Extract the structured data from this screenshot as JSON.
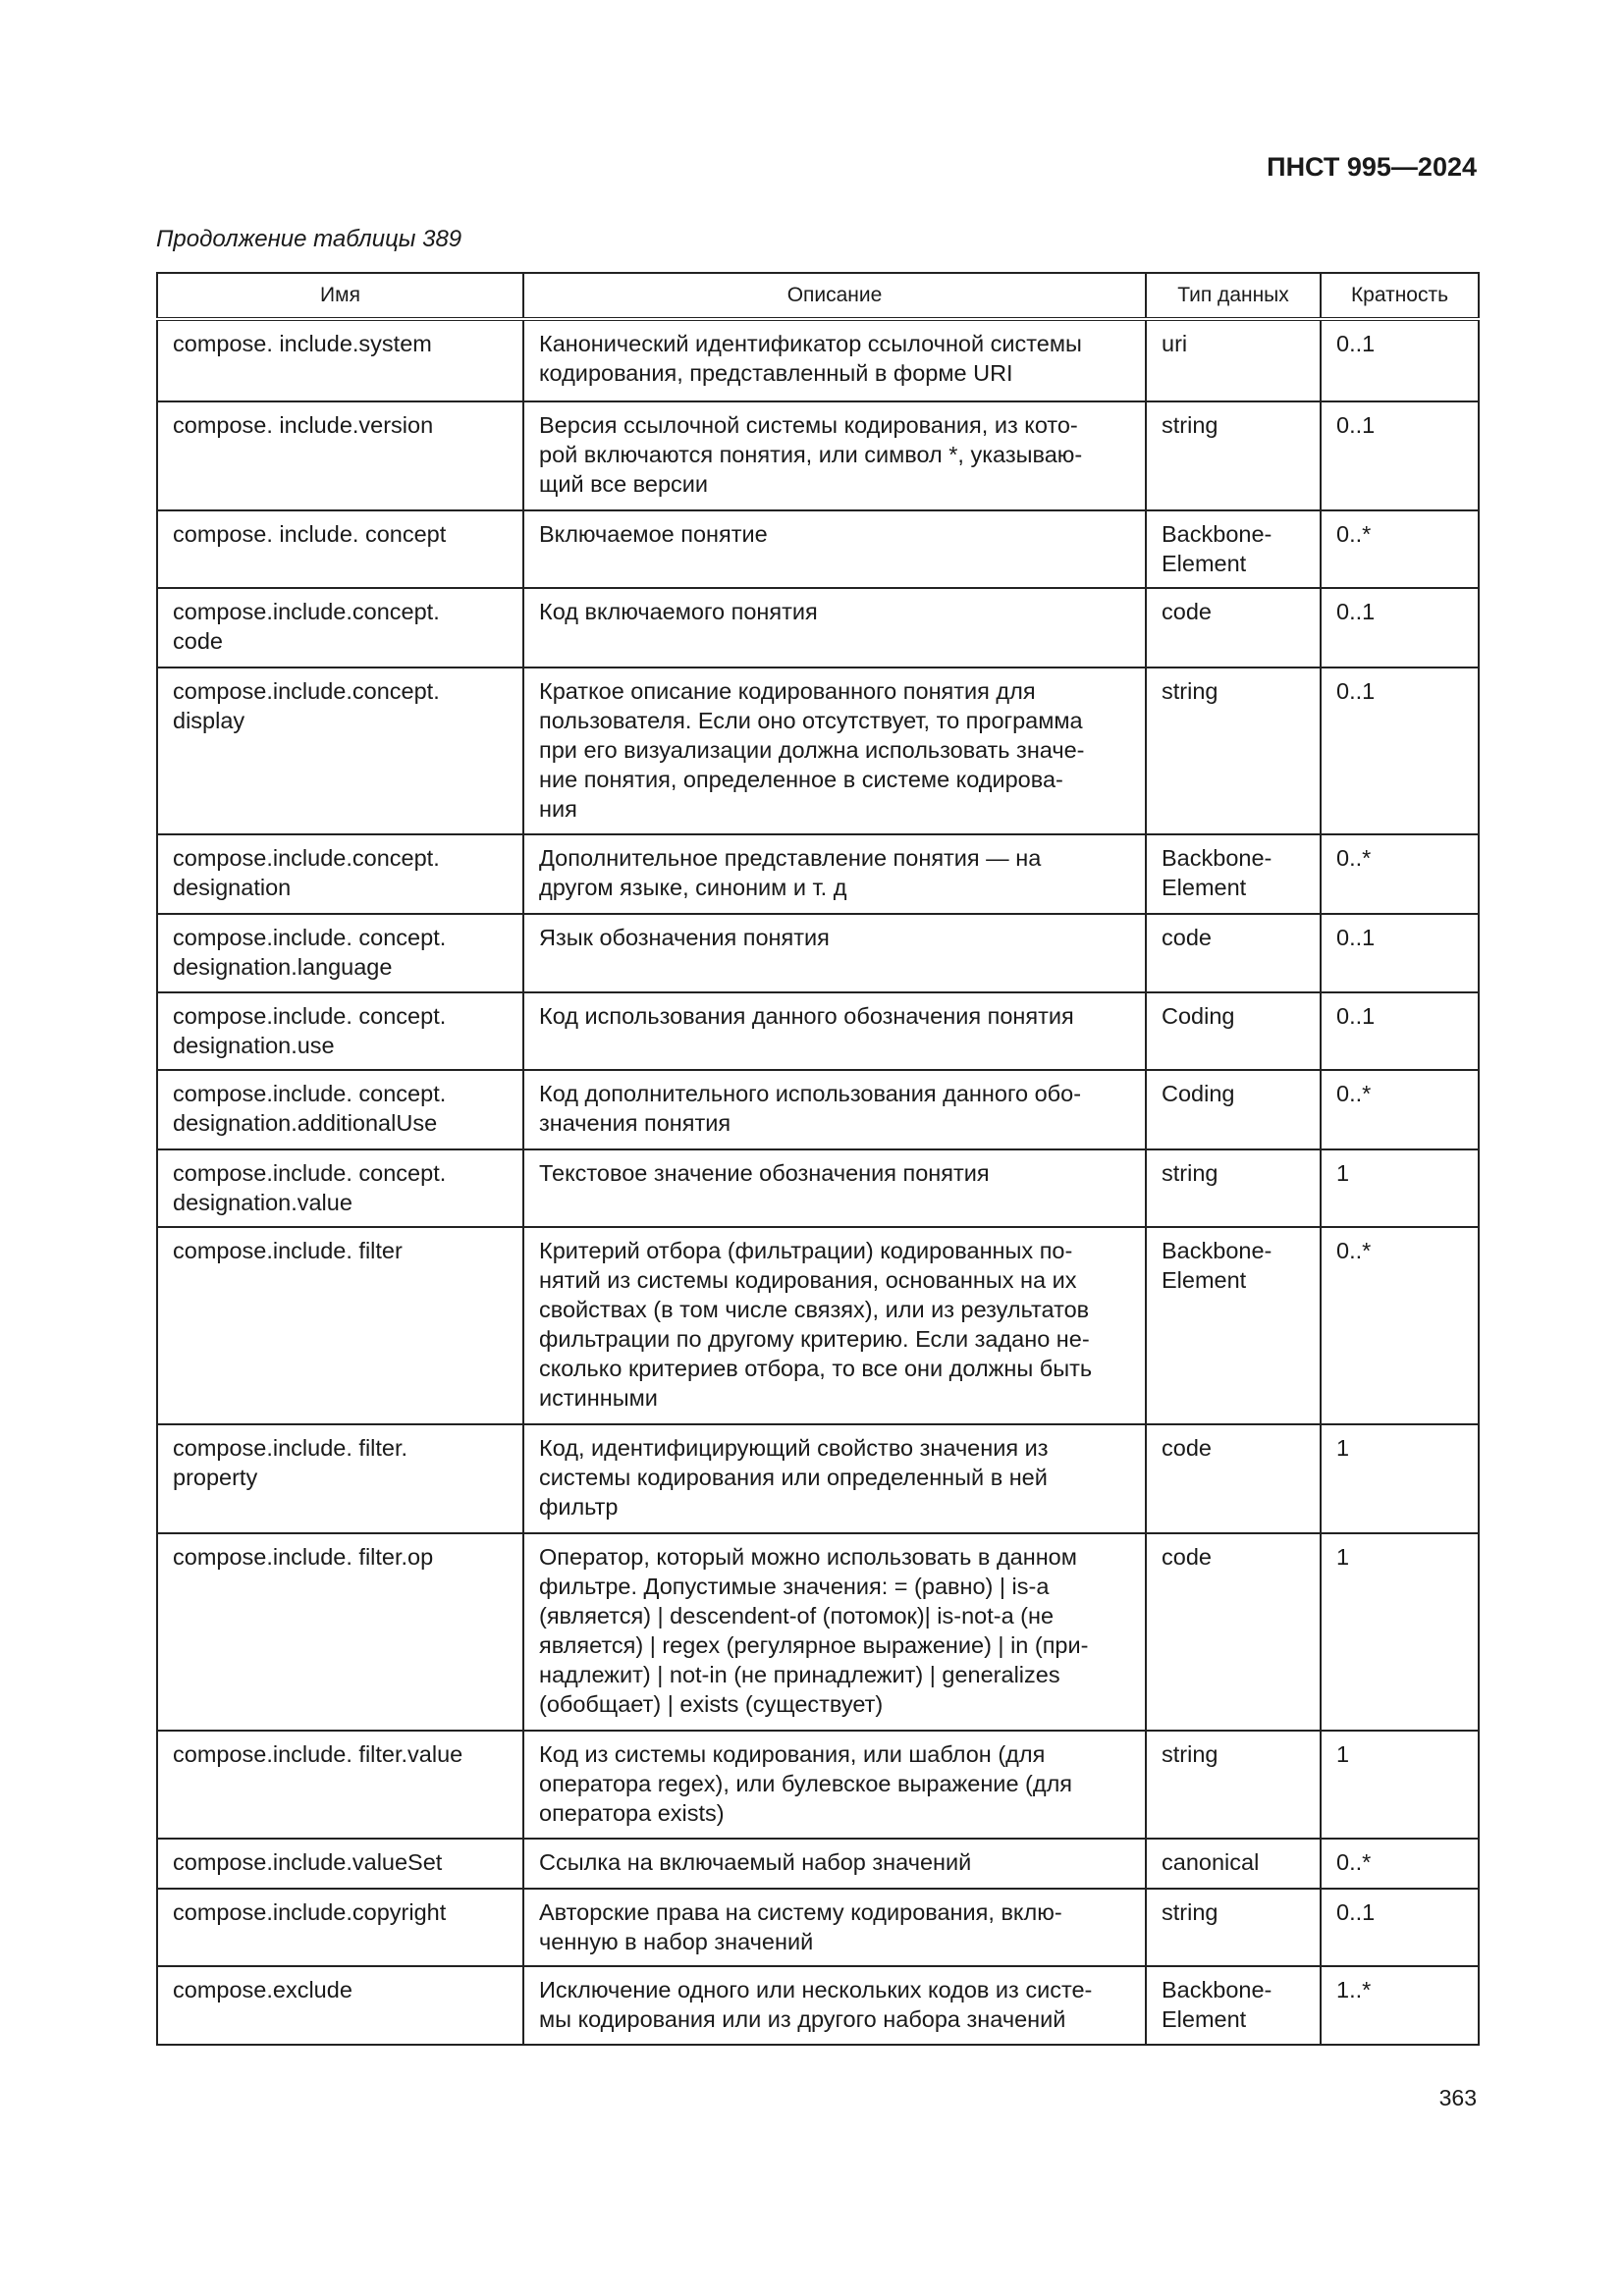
{
  "header": {
    "doc_id": "ПНСТ 995—2024",
    "caption": "Продолжение таблицы 389"
  },
  "table": {
    "columns": [
      "Имя",
      "Описание",
      "Тип данных",
      "Кратность"
    ],
    "rows": [
      {
        "name": " compose. include.system",
        "desc": "Канонический идентификатор ссылочной системы\nкодирования, представленный в форме URI",
        "type": "uri",
        "card": "0..1"
      },
      {
        "name": "compose. include.version",
        "desc": "Версия ссылочной системы кодирования, из кото-\nрой включаются понятия, или символ *, указываю-\nщий все версии",
        "type": "string",
        "card": "0..1"
      },
      {
        "name": "compose. include. concept",
        "desc": "Включаемое понятие",
        "type": "Backbone-\nElement",
        "card": "0..*"
      },
      {
        "name": "compose.include.concept.\ncode",
        "desc": "Код включаемого понятия",
        "type": "code",
        "card": "0..1"
      },
      {
        "name": "compose.include.concept.\ndisplay",
        "desc": "Краткое описание кодированного понятия для\nпользователя. Если оно отсутствует, то программа\nпри его визуализации должна использовать значе-\nние понятия, определенное в системе кодирова-\nния",
        "type": "string",
        "card": "0..1"
      },
      {
        "name": "compose.include.concept.\ndesignation",
        "desc": "Дополнительное представление понятия — на\nдругом языке, синоним и т. д",
        "type": "Backbone-\nElement",
        "card": "0..*"
      },
      {
        "name": "compose.include. concept.\ndesignation.language",
        "desc": "Язык обозначения понятия",
        "type": "code",
        "card": "0..1"
      },
      {
        "name": "compose.include. concept.\ndesignation.use",
        "desc": "Код использования данного обозначения понятия",
        "type": "Coding",
        "card": "0..1"
      },
      {
        "name": "compose.include. concept.\ndesignation.additionalUse",
        "desc": "Код дополнительного использования данного обо-\nзначения понятия",
        "type": "Coding",
        "card": "0..*"
      },
      {
        "name": "compose.include. concept.\ndesignation.value",
        "desc": "Текстовое значение обозначения понятия",
        "type": "string",
        "card": "1"
      },
      {
        "name": "compose.include. filter",
        "desc": "Критерий отбора (фильтрации) кодированных по-\nнятий из системы кодирования, основанных на их\nсвойствах (в том числе связях), или из результатов\nфильтрации по другому критерию. Если задано не-\nсколько критериев отбора, то все они должны быть\nистинными",
        "type": "Backbone-\nElement",
        "card": "0..*"
      },
      {
        "name": "compose.include. filter.\nproperty",
        "desc": "Код, идентифицирующий свойство значения из\nсистемы кодирования или определенный в ней\nфильтр",
        "type": "code",
        "card": "1"
      },
      {
        "name": "compose.include. filter.op",
        "desc": "Оператор, который можно использовать в данном\nфильтре. Допустимые значения: = (равно) | is-a\n(является) | descendent-of (потомок)| is-not-a (не\nявляется) | regex (регулярное выражение) | in (при-\nнадлежит) | not-in (не принадлежит) | generalizes\n(обобщает) | exists (существует)",
        "type": "code",
        "card": "1"
      },
      {
        "name": "compose.include. filter.value",
        "desc": "Код из системы кодирования, или шаблон (для\nоператора regex), или булевское выражение (для\nоператора exists)",
        "type": "string",
        "card": "1"
      },
      {
        "name": "compose.include.valueSet",
        "desc": "Ссылка на включаемый набор значений",
        "type": "canonical",
        "card": "0..*"
      },
      {
        "name": "compose.include.copyright",
        "desc": "Авторские права на систему кодирования, вклю-\nченную в набор значений",
        "type": "string",
        "card": "0..1"
      },
      {
        "name": "compose.exclude",
        "desc": "Исключение одного или нескольких кодов из систе-\nмы кодирования или из другого набора значений",
        "type": "Backbone-\nElement",
        "card": "1..*"
      }
    ]
  },
  "footer": {
    "page_number": "363"
  }
}
